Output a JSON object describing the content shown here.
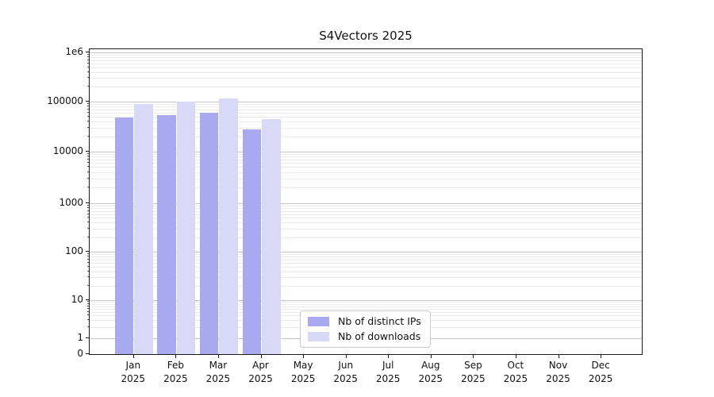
{
  "title": "S4Vectors 2025",
  "chart_data": {
    "type": "bar",
    "title": "S4Vectors 2025",
    "categories": [
      "Jan 2025",
      "Feb 2025",
      "Mar 2025",
      "Apr 2025",
      "May 2025",
      "Jun 2025",
      "Jul 2025",
      "Aug 2025",
      "Sep 2025",
      "Oct 2025",
      "Nov 2025",
      "Dec 2025"
    ],
    "x_months": [
      "Jan",
      "Feb",
      "Mar",
      "Apr",
      "May",
      "Jun",
      "Jul",
      "Aug",
      "Sep",
      "Oct",
      "Nov",
      "Dec"
    ],
    "x_year": "2025",
    "series": [
      {
        "name": "Nb of distinct IPs",
        "key": "distinct-ips",
        "color": "#a9a9f0",
        "values": [
          47000,
          53000,
          60000,
          27500,
          0,
          0,
          0,
          0,
          0,
          0,
          0,
          0
        ]
      },
      {
        "name": "Nb of downloads",
        "key": "downloads",
        "color": "#d8d8f7",
        "values": [
          90000,
          100000,
          117000,
          45000,
          0,
          0,
          0,
          0,
          0,
          0,
          0,
          0
        ]
      }
    ],
    "yscale": "symlog",
    "ylim": [
      0,
      1000000
    ],
    "y_ticks": [
      {
        "label": "1e6",
        "value": 1000000
      },
      {
        "label": "100000",
        "value": 100000
      },
      {
        "label": "10000",
        "value": 10000
      },
      {
        "label": "1000",
        "value": 1000
      },
      {
        "label": "100",
        "value": 100
      },
      {
        "label": "10",
        "value": 10
      },
      {
        "label": "1",
        "value": 1
      },
      {
        "label": "0",
        "value": 0
      }
    ],
    "grid": "horizontal major + log minor gridlines",
    "legend_position": "lower center"
  },
  "colors": {
    "bar_distinct_ips": "#a9a9f0",
    "bar_downloads": "#d8d8f7",
    "major_grid": "#c6c6c6",
    "minor_grid": "#ebebeb",
    "spine": "#1a1a1a",
    "legend_border": "#cccccc",
    "background": "#ffffff"
  }
}
